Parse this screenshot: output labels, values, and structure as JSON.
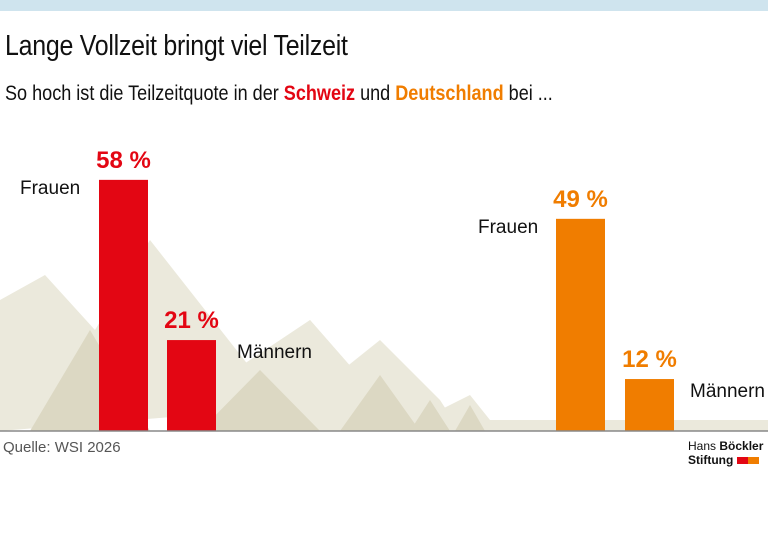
{
  "title": "Lange Vollzeit bringt viel Teilzeit",
  "subtitle": {
    "prefix": "So hoch ist die Teilzeitquote in der",
    "country1": "Schweiz",
    "middle": "und",
    "country2": "Deutschland",
    "suffix": "bei ..."
  },
  "source": "Quelle: WSI 2026",
  "logo": {
    "line1a": "Hans",
    "line1b": "Böckler",
    "line2": "Stiftung"
  },
  "colors": {
    "schweiz": "#e30613",
    "deutschland": "#f07d00",
    "mountain_light": "#ebe9dc",
    "mountain_dark": "#dcd8c3"
  },
  "chart_data": {
    "type": "bar",
    "ylim": [
      0,
      100
    ],
    "groups": [
      {
        "name": "Schweiz",
        "color": "#e30613",
        "bars": [
          {
            "label": "Frauen",
            "value": 58,
            "value_label": "58 %"
          },
          {
            "label": "Männern",
            "value": 21,
            "value_label": "21 %"
          }
        ]
      },
      {
        "name": "Deutschland",
        "color": "#f07d00",
        "bars": [
          {
            "label": "Frauen",
            "value": 49,
            "value_label": "49 %"
          },
          {
            "label": "Männern",
            "value": 12,
            "value_label": "12 %"
          }
        ]
      }
    ]
  }
}
